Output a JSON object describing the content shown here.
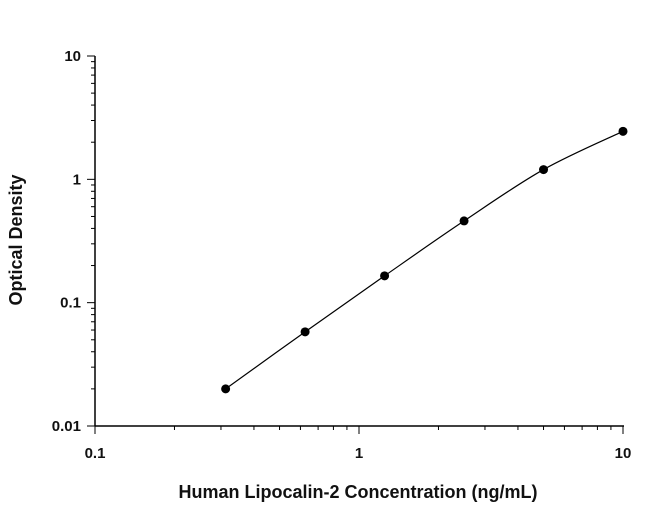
{
  "chart_data": {
    "type": "scatter",
    "title": "",
    "xlabel": "Human Lipocalin-2 Concentration (ng/mL)",
    "ylabel": "Optical Density",
    "xscale": "log",
    "yscale": "log",
    "xlim": [
      0.1,
      10
    ],
    "ylim": [
      0.01,
      10
    ],
    "x_ticks": [
      0.1,
      1,
      10
    ],
    "x_tick_labels": [
      "0.1",
      "1",
      "10"
    ],
    "y_ticks": [
      0.01,
      0.1,
      1,
      10
    ],
    "y_tick_labels": [
      "0.01",
      "0.1",
      "1",
      "10"
    ],
    "grid": false,
    "series": [
      {
        "x": [
          0.3125,
          0.625,
          1.25,
          2.5,
          5,
          10
        ],
        "y": [
          0.02,
          0.058,
          0.165,
          0.46,
          1.2,
          2.45
        ],
        "marker": "filled-circle",
        "fit_curve": true,
        "color": "#000000"
      }
    ]
  }
}
